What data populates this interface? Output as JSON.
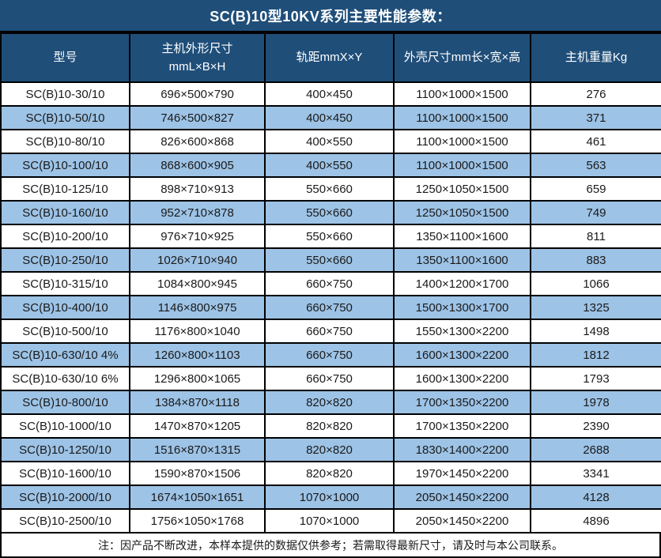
{
  "title": "SC(B)10型10KV系列主要性能参数：",
  "table": {
    "columns": [
      {
        "label": "型号"
      },
      {
        "label": "主机外形尺寸",
        "label2": "mmL×B×H"
      },
      {
        "label": "轨距mmX×Y"
      },
      {
        "label": "外壳尺寸mm长×宽×高"
      },
      {
        "label": "主机重量Kg"
      }
    ],
    "rows": [
      [
        "SC(B)10-30/10",
        "696×500×790",
        "400×450",
        "1100×1000×1500",
        "276"
      ],
      [
        "SC(B)10-50/10",
        "746×500×827",
        "400×450",
        "1100×1000×1500",
        "371"
      ],
      [
        "SC(B)10-80/10",
        "826×600×868",
        "400×550",
        "1100×1000×1500",
        "461"
      ],
      [
        "SC(B)10-100/10",
        "868×600×905",
        "400×550",
        "1100×1000×1500",
        "563"
      ],
      [
        "SC(B)10-125/10",
        "898×710×913",
        "550×660",
        "1250×1050×1500",
        "659"
      ],
      [
        "SC(B)10-160/10",
        "952×710×878",
        "550×660",
        "1250×1050×1500",
        "749"
      ],
      [
        "SC(B)10-200/10",
        "976×710×925",
        "550×660",
        "1350×1100×1600",
        "811"
      ],
      [
        "SC(B)10-250/10",
        "1026×710×940",
        "550×660",
        "1350×1100×1600",
        "883"
      ],
      [
        "SC(B)10-315/10",
        "1084×800×945",
        "660×750",
        "1400×1200×1700",
        "1066"
      ],
      [
        "SC(B)10-400/10",
        "1146×800×975",
        "660×750",
        "1500×1300×1700",
        "1325"
      ],
      [
        "SC(B)10-500/10",
        "1176×800×1040",
        "660×750",
        "1550×1300×2200",
        "1498"
      ],
      [
        "SC(B)10-630/10 4%",
        "1260×800×1103",
        "660×750",
        "1600×1300×2200",
        "1812"
      ],
      [
        "SC(B)10-630/10 6%",
        "1296×800×1065",
        "660×750",
        "1600×1300×2200",
        "1793"
      ],
      [
        "SC(B)10-800/10",
        "1384×870×1118",
        "820×820",
        "1700×1350×2200",
        "1978"
      ],
      [
        "SC(B)10-1000/10",
        "1470×870×1205",
        "820×820",
        "1700×1350×2200",
        "2390"
      ],
      [
        "SC(B)10-1250/10",
        "1516×870×1315",
        "820×820",
        "1830×1400×2200",
        "2688"
      ],
      [
        "SC(B)10-1600/10",
        "1590×870×1506",
        "820×820",
        "1970×1450×2200",
        "3341"
      ],
      [
        "SC(B)10-2000/10",
        "1674×1050×1651",
        "1070×1000",
        "2050×1450×2200",
        "4128"
      ],
      [
        "SC(B)10-2500/10",
        "1756×1050×1768",
        "1070×1000",
        "2050×1450×2200",
        "4896"
      ]
    ]
  },
  "note": "注：因产品不断改进，本样本提供的数据仅供参考；若需取得最新尺寸，请及时与本公司联系。",
  "colors": {
    "header_bg": "#1F4E79",
    "row_alt_bg": "#9DC3E6",
    "row_bg": "#FFFFFF",
    "border": "#000000",
    "header_text": "#FFFFFF",
    "body_text": "#1A1A1A"
  }
}
